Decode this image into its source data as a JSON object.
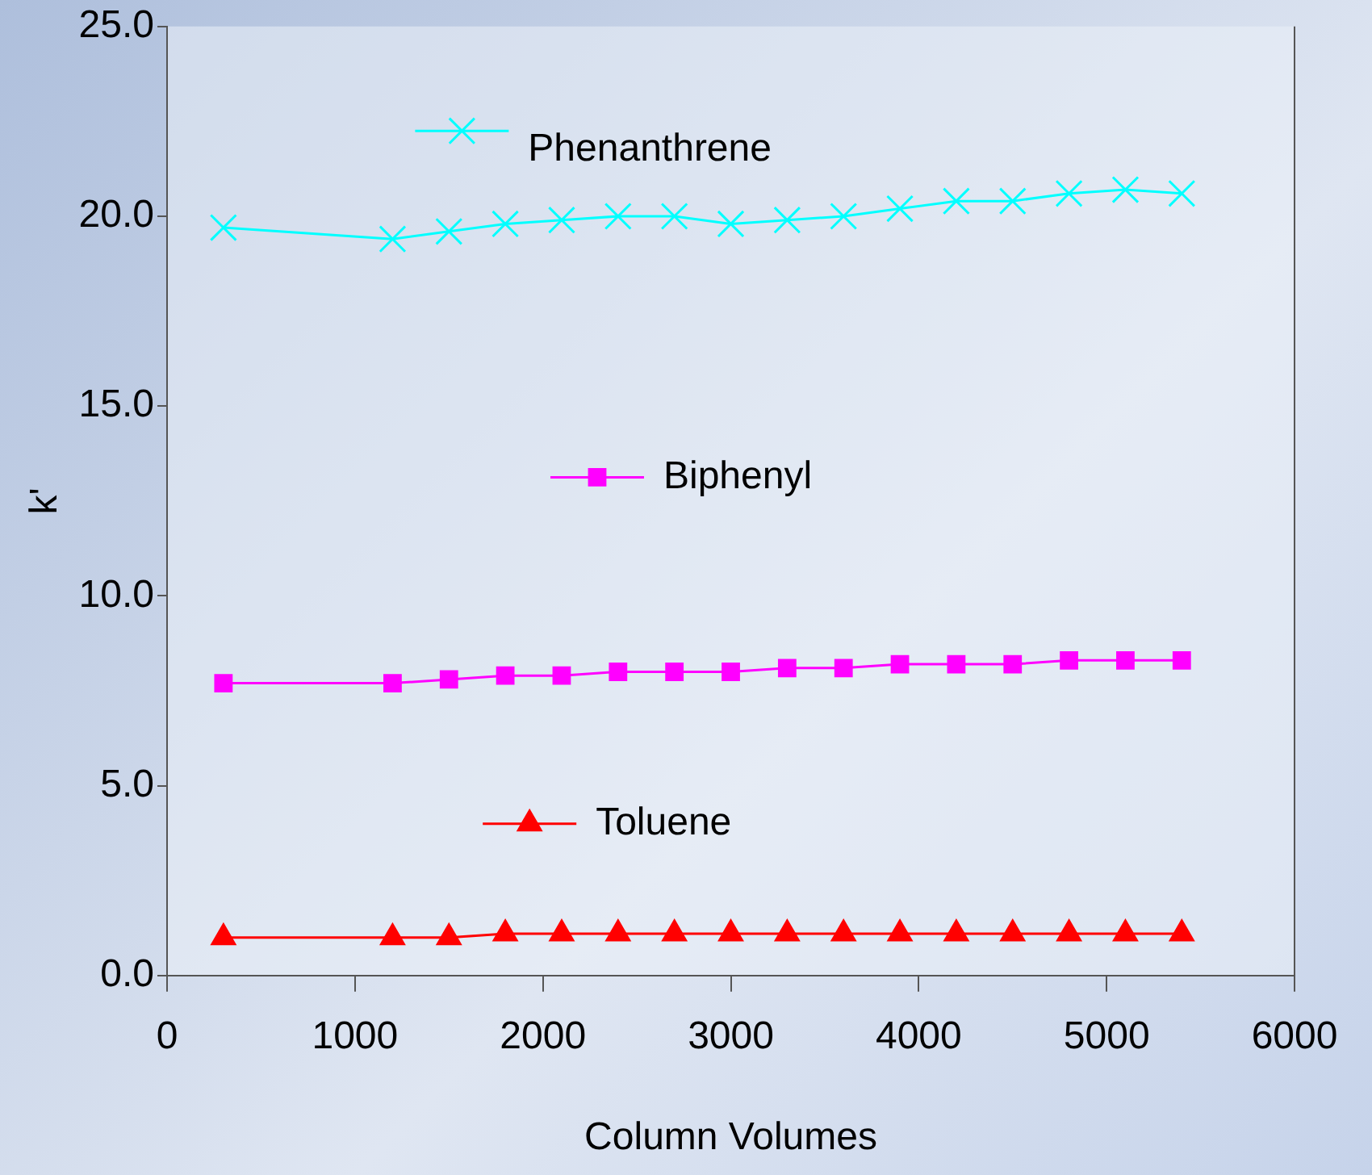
{
  "chart_data": {
    "type": "line",
    "xlabel": "Column Volumes",
    "ylabel": "k'",
    "x": [
      300,
      1200,
      1500,
      1800,
      2100,
      2400,
      2700,
      3000,
      3300,
      3600,
      3900,
      4200,
      4500,
      4800,
      5100,
      5400
    ],
    "xlim": [
      0,
      6000
    ],
    "xticks": [
      0,
      1000,
      2000,
      3000,
      4000,
      5000,
      6000
    ],
    "ylim": [
      0,
      25
    ],
    "yticks": [
      {
        "value": 0,
        "label": "0.0"
      },
      {
        "value": 5,
        "label": "5.0"
      },
      {
        "value": 10,
        "label": "10.0"
      },
      {
        "value": 15,
        "label": "15.0"
      },
      {
        "value": 20,
        "label": "20.0"
      },
      {
        "value": 25,
        "label": "25.0"
      }
    ],
    "grid": false,
    "legend": "center",
    "line_style": "solid",
    "series": [
      {
        "name": "Phenanthrene",
        "color": "#00ffff",
        "marker": "cross",
        "values": [
          19.7,
          19.4,
          19.6,
          19.8,
          19.9,
          20.0,
          20.0,
          19.8,
          19.9,
          20.0,
          20.2,
          20.4,
          20.4,
          20.6,
          20.7,
          20.6
        ]
      },
      {
        "name": "Biphenyl",
        "color": "#ff00ff",
        "marker": "square",
        "values": [
          7.7,
          7.7,
          7.8,
          7.9,
          7.9,
          8.0,
          8.0,
          8.0,
          8.1,
          8.1,
          8.2,
          8.2,
          8.2,
          8.3,
          8.3,
          8.3
        ]
      },
      {
        "name": "Toluene",
        "color": "#ff0000",
        "marker": "triangle",
        "values": [
          1.0,
          1.0,
          1.0,
          1.1,
          1.1,
          1.1,
          1.1,
          1.1,
          1.1,
          1.1,
          1.1,
          1.1,
          1.1,
          1.1,
          1.1,
          1.1
        ]
      }
    ]
  }
}
